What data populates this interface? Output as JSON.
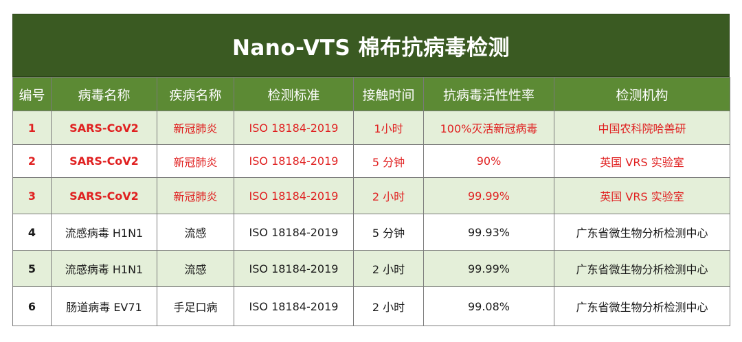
{
  "title": "Nano-VTS 棉布抗病毒检测",
  "colors": {
    "title_bg": "#3a5a22",
    "header_bg": "#5c8a34",
    "row_shaded_bg": "#e4efd9",
    "highlight_text": "#e02020",
    "normal_text": "#1a1a1a"
  },
  "headers": [
    "编号",
    "病毒名称",
    "疾病名称",
    "检测标准",
    "接触时间",
    "抗病毒活性性率",
    "检测机构"
  ],
  "rows": [
    {
      "id": "1",
      "virus": "SARS-CoV2",
      "disease": "新冠肺炎",
      "standard": "ISO 18184-2019",
      "time": "1小时",
      "rate": "100%灭活新冠病毒",
      "lab": "中国农科院哈兽研"
    },
    {
      "id": "2",
      "virus": "SARS-CoV2",
      "disease": "新冠肺炎",
      "standard": "ISO 18184-2019",
      "time": "5 分钟",
      "rate": "90%",
      "lab": "英国 VRS 实验室"
    },
    {
      "id": "3",
      "virus": "SARS-CoV2",
      "disease": "新冠肺炎",
      "standard": "ISO 18184-2019",
      "time": "2 小时",
      "rate": "99.99%",
      "lab": "英国 VRS 实验室"
    },
    {
      "id": "4",
      "virus": "流感病毒  H1N1",
      "disease": "流感",
      "standard": "ISO 18184-2019",
      "time": "5 分钟",
      "rate": "99.93%",
      "lab": "广东省微生物分析检测中心"
    },
    {
      "id": "5",
      "virus": "流感病毒  H1N1",
      "disease": "流感",
      "standard": "ISO 18184-2019",
      "time": "2 小时",
      "rate": "99.99%",
      "lab": "广东省微生物分析检测中心"
    },
    {
      "id": "6",
      "virus": "肠道病毒  EV71",
      "disease": "手足口病",
      "standard": "ISO 18184-2019",
      "time": "2 小时",
      "rate": "99.08%",
      "lab": "广东省微生物分析检测中心"
    }
  ]
}
